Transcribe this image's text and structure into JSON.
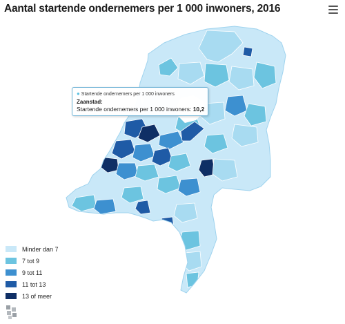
{
  "title": "Aantal startende ondernemers per 1 000 inwoners, 2016",
  "menu_icon": "hamburger-menu-icon",
  "logo_icon": "cbs-logo-icon",
  "tooltip": {
    "series_name": "Startende ondernemers per 1 000 inwoners",
    "region": "Zaanstad:",
    "metric_label": "Startende ondernemers per 1 000 inwoners:",
    "metric_value": "10,2"
  },
  "legend": {
    "classes": [
      {
        "label": "Minder dan 7",
        "color": "#c9e8f8"
      },
      {
        "label": "7 tot 9",
        "color": "#6cc4e0"
      },
      {
        "label": "9 tot 11",
        "color": "#3d90d0"
      },
      {
        "label": "11 tot 13",
        "color": "#1f5ba6"
      },
      {
        "label": "13 of meer",
        "color": "#0f2f65"
      }
    ]
  },
  "colors": {
    "background": "#ffffff",
    "tooltip_border": "#6fb3d6",
    "water": "#ffffff"
  }
}
